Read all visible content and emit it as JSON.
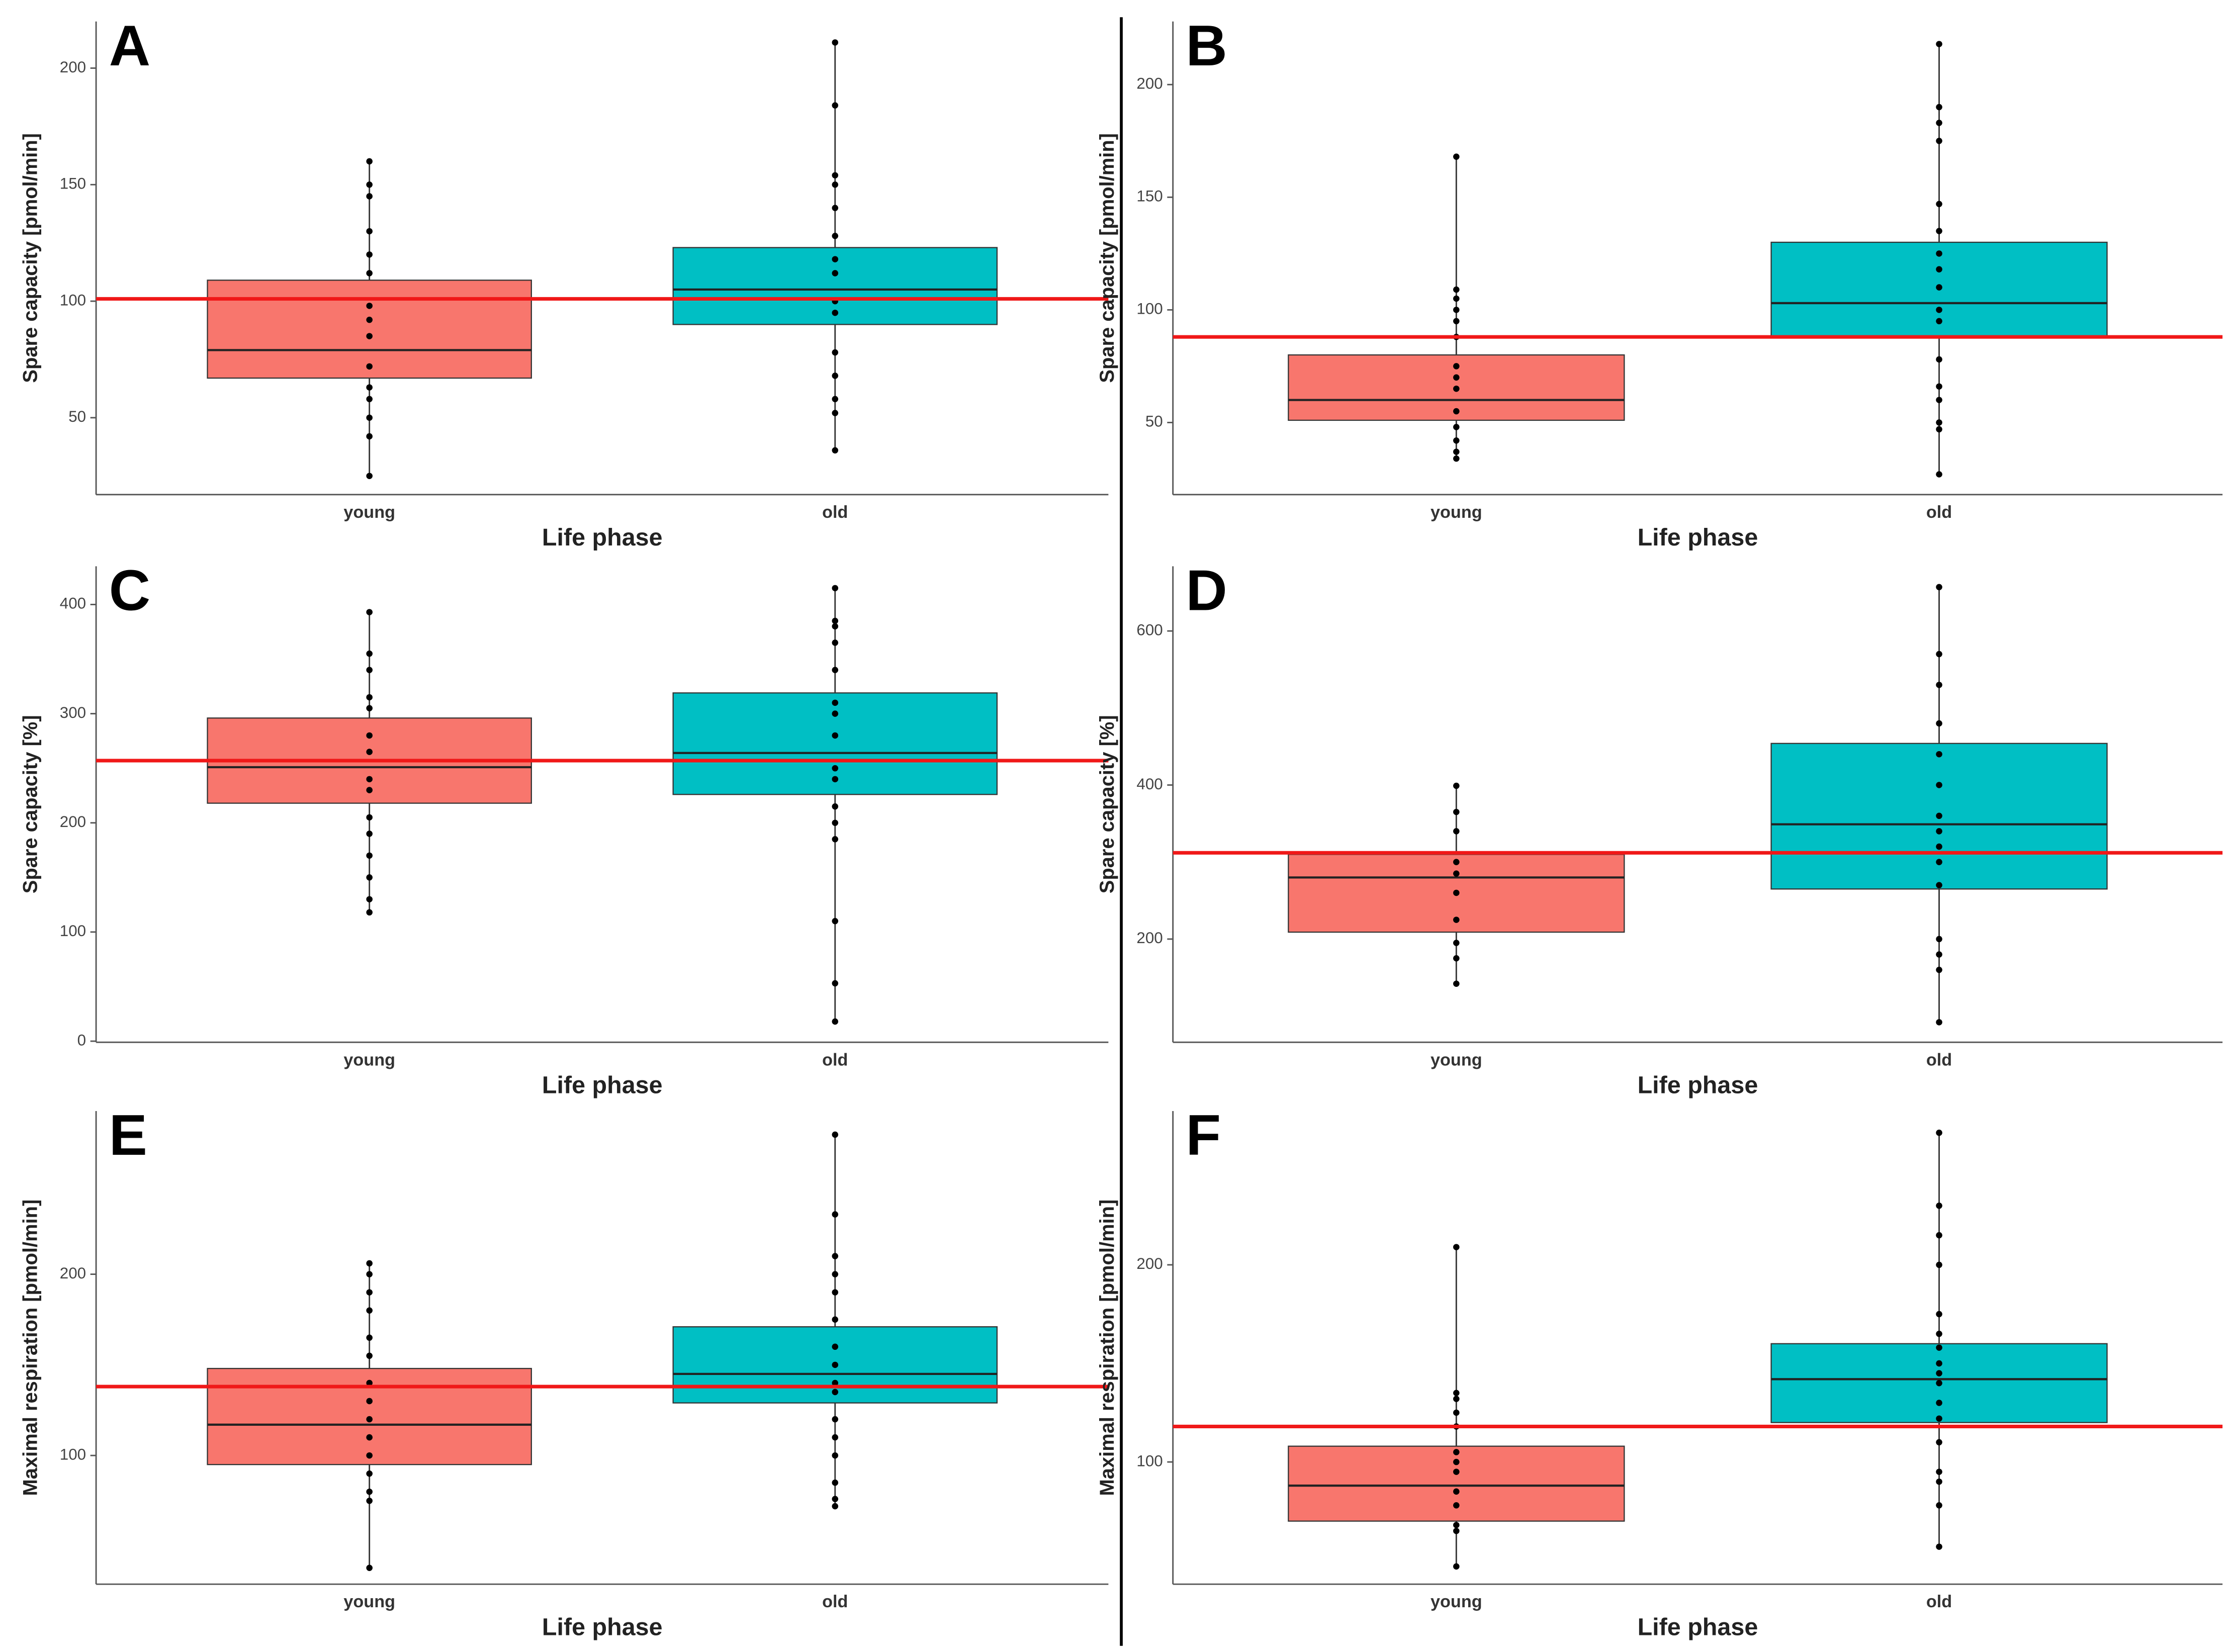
{
  "chart_data": [
    {
      "type": "box",
      "panel": "A",
      "ylabel": "Spare capacity [pmol/min]",
      "xlabel": "Life phase",
      "categories": [
        "young",
        "old"
      ],
      "colors": [
        "#f8766d",
        "#00bfc4"
      ],
      "ref_line": 101,
      "ref_color": "#f01818",
      "ylim": [
        17,
        220
      ],
      "yticks": [
        50,
        100,
        150,
        200
      ],
      "boxes": [
        {
          "min": 25,
          "q1": 67,
          "median": 79,
          "q3": 109,
          "max": 160,
          "points": [
            42,
            50,
            58,
            63,
            72,
            85,
            92,
            98,
            112,
            120,
            130,
            145,
            150
          ]
        },
        {
          "min": 36,
          "q1": 90,
          "median": 105,
          "q3": 123,
          "max": 211,
          "points": [
            52,
            58,
            68,
            78,
            95,
            100,
            112,
            118,
            128,
            140,
            150,
            154,
            184
          ]
        }
      ]
    },
    {
      "type": "box",
      "panel": "B",
      "ylabel": "Spare capacity [pmol/min]",
      "xlabel": "Life phase",
      "categories": [
        "young",
        "old"
      ],
      "colors": [
        "#f8766d",
        "#00bfc4"
      ],
      "ref_line": 88,
      "ref_color": "#f01818",
      "ylim": [
        18,
        228
      ],
      "yticks": [
        50,
        100,
        150,
        200
      ],
      "boxes": [
        {
          "min": 34,
          "q1": 51,
          "median": 60,
          "q3": 80,
          "max": 168,
          "points": [
            37,
            42,
            48,
            55,
            65,
            70,
            75,
            88,
            95,
            100,
            105,
            109
          ]
        },
        {
          "min": 27,
          "q1": 88,
          "median": 103,
          "q3": 130,
          "max": 218,
          "points": [
            47,
            50,
            60,
            66,
            78,
            95,
            100,
            110,
            118,
            125,
            135,
            147,
            175,
            183,
            190
          ]
        }
      ]
    },
    {
      "type": "box",
      "panel": "C",
      "ylabel": "Spare capacity [%]",
      "xlabel": "Life phase",
      "categories": [
        "young",
        "old"
      ],
      "colors": [
        "#f8766d",
        "#00bfc4"
      ],
      "ref_line": 257,
      "ref_color": "#f01818",
      "ylim": [
        -1,
        435
      ],
      "yticks": [
        0,
        100,
        200,
        300,
        400
      ],
      "boxes": [
        {
          "min": 118,
          "q1": 218,
          "median": 251,
          "q3": 296,
          "max": 393,
          "points": [
            130,
            150,
            170,
            190,
            205,
            230,
            240,
            265,
            280,
            305,
            315,
            340,
            355
          ]
        },
        {
          "min": 18,
          "q1": 226,
          "median": 264,
          "q3": 319,
          "max": 415,
          "points": [
            53,
            110,
            185,
            200,
            215,
            240,
            250,
            280,
            300,
            310,
            340,
            365,
            380,
            385
          ]
        }
      ]
    },
    {
      "type": "box",
      "panel": "D",
      "ylabel": "Spare capacity [%]",
      "xlabel": "Life phase",
      "categories": [
        "young",
        "old"
      ],
      "colors": [
        "#f8766d",
        "#00bfc4"
      ],
      "ref_line": 312,
      "ref_color": "#f01818",
      "ylim": [
        66,
        684
      ],
      "yticks": [
        200,
        400,
        600
      ],
      "boxes": [
        {
          "min": 142,
          "q1": 209,
          "median": 280,
          "q3": 310,
          "max": 399,
          "points": [
            175,
            195,
            225,
            260,
            285,
            300,
            340,
            365
          ]
        },
        {
          "min": 92,
          "q1": 265,
          "median": 349,
          "q3": 454,
          "max": 657,
          "points": [
            160,
            180,
            200,
            270,
            300,
            320,
            340,
            360,
            400,
            440,
            480,
            530,
            570
          ]
        }
      ]
    },
    {
      "type": "box",
      "panel": "E",
      "ylabel": "Maximal respiration [pmol/min]",
      "xlabel": "Life phase",
      "categories": [
        "young",
        "old"
      ],
      "colors": [
        "#f8766d",
        "#00bfc4"
      ],
      "ref_line": 138,
      "ref_color": "#f01818",
      "ylim": [
        29,
        290
      ],
      "yticks": [
        100,
        200
      ],
      "boxes": [
        {
          "min": 38,
          "q1": 95,
          "median": 117,
          "q3": 148,
          "max": 206,
          "points": [
            75,
            80,
            90,
            100,
            110,
            120,
            130,
            140,
            155,
            165,
            180,
            190,
            200
          ]
        },
        {
          "min": 72,
          "q1": 129,
          "median": 145,
          "q3": 171,
          "max": 277,
          "points": [
            76,
            85,
            100,
            110,
            120,
            135,
            140,
            150,
            160,
            175,
            190,
            200,
            210,
            233
          ]
        }
      ]
    },
    {
      "type": "box",
      "panel": "F",
      "ylabel": "Maximal respiration [pmol/min]",
      "xlabel": "Life phase",
      "categories": [
        "young",
        "old"
      ],
      "colors": [
        "#f8766d",
        "#00bfc4"
      ],
      "ref_line": 118,
      "ref_color": "#f01818",
      "ylim": [
        38,
        278
      ],
      "yticks": [
        100,
        200
      ],
      "boxes": [
        {
          "min": 47,
          "q1": 70,
          "median": 88,
          "q3": 108,
          "max": 209,
          "points": [
            65,
            68,
            78,
            85,
            95,
            100,
            105,
            118,
            125,
            132,
            135
          ]
        },
        {
          "min": 57,
          "q1": 120,
          "median": 142,
          "q3": 160,
          "max": 267,
          "points": [
            78,
            90,
            95,
            110,
            122,
            130,
            140,
            145,
            150,
            158,
            165,
            175,
            200,
            215,
            230
          ]
        }
      ]
    }
  ]
}
